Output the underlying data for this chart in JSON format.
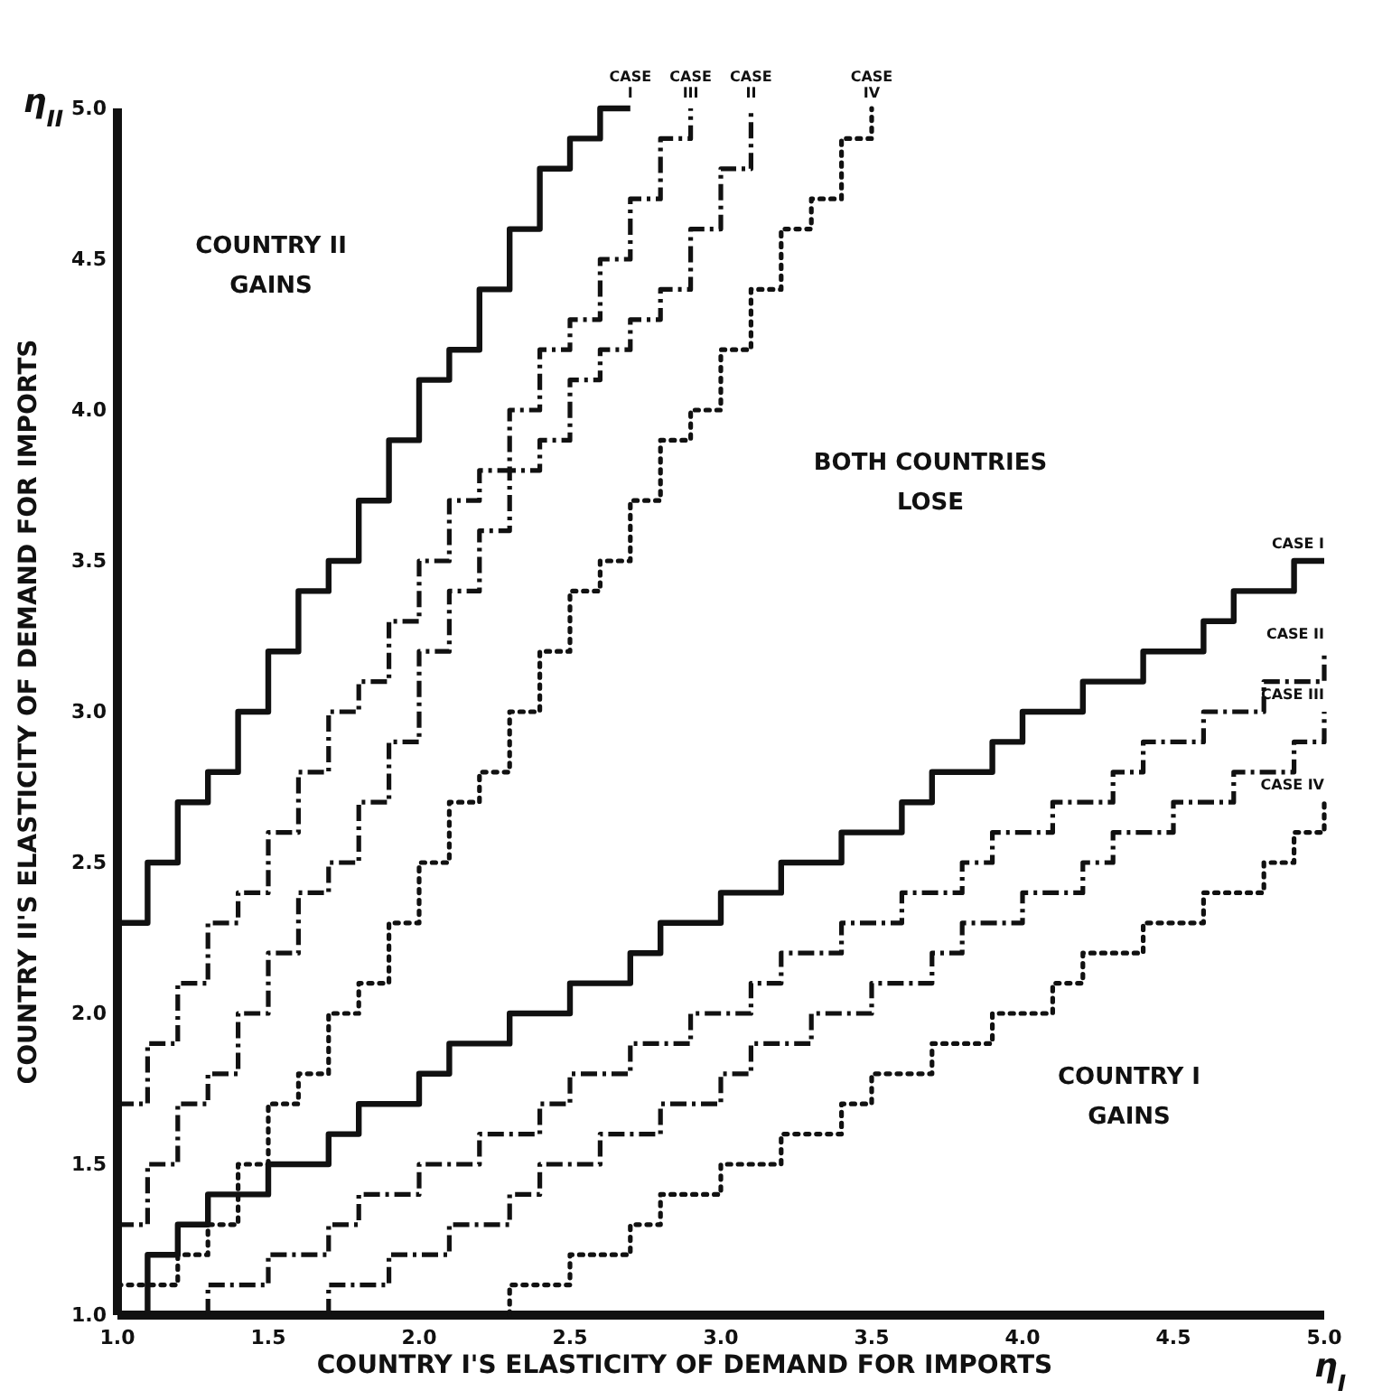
{
  "chart_data": {
    "type": "step",
    "xlabel": "COUNTRY I'S ELASTICITY OF DEMAND FOR IMPORTS",
    "ylabel": "COUNTRY II'S ELASTICITY OF DEMAND FOR IMPORTS",
    "xlim": [
      1.0,
      5.0
    ],
    "ylim": [
      1.0,
      5.0
    ],
    "xticks": [
      {
        "value": 1.0,
        "label": "1.0"
      },
      {
        "value": 1.5,
        "label": "1.5"
      },
      {
        "value": 2.0,
        "label": "2.0"
      },
      {
        "value": 2.5,
        "label": "2.5"
      },
      {
        "value": 3.0,
        "label": "3.0"
      },
      {
        "value": 3.5,
        "label": "3.5"
      },
      {
        "value": 4.0,
        "label": "4.0"
      },
      {
        "value": 4.5,
        "label": "4.5"
      },
      {
        "value": 5.0,
        "label": "5.0"
      }
    ],
    "yticks": [
      {
        "value": 1.0,
        "label": "1.0"
      },
      {
        "value": 1.5,
        "label": "1.5"
      },
      {
        "value": 2.0,
        "label": "2.0"
      },
      {
        "value": 2.5,
        "label": "2.5"
      },
      {
        "value": 3.0,
        "label": "3.0"
      },
      {
        "value": 3.5,
        "label": "3.5"
      },
      {
        "value": 4.0,
        "label": "4.0"
      },
      {
        "value": 4.5,
        "label": "4.5"
      },
      {
        "value": 5.0,
        "label": "5.0"
      }
    ],
    "grid": false,
    "marker": "none",
    "annotations": [
      "COUNTRY II GAINS",
      "BOTH COUNTRIES LOSE",
      "COUNTRY I GAINS",
      "η$_{I}$",
      "η$_{II}$"
    ],
    "series": [
      {
        "name": "CASE I",
        "color": "#111111",
        "line_style": "solid",
        "x": [
          1.0,
          1.1,
          1.2,
          1.3,
          1.4,
          1.5,
          1.6,
          1.7,
          1.8,
          1.9,
          2.0,
          2.1,
          2.2,
          2.3,
          2.4,
          2.5,
          2.6,
          2.7
        ],
        "values": [
          2.3,
          2.5,
          2.7,
          2.8,
          3.0,
          3.2,
          3.4,
          3.5,
          3.7,
          3.9,
          4.1,
          4.2,
          4.4,
          4.6,
          4.8,
          4.9,
          5.0,
          5.0
        ]
      },
      {
        "name": "CASE III",
        "color": "#111111",
        "line_style": "dashed",
        "x": [
          1.0,
          1.1,
          1.2,
          1.3,
          1.4,
          1.5,
          1.6,
          1.7,
          1.8,
          1.9,
          2.0,
          2.1,
          2.2,
          2.3,
          2.4,
          2.5,
          2.6,
          2.7,
          2.8,
          2.9
        ],
        "values": [
          1.7,
          1.9,
          2.1,
          2.3,
          2.4,
          2.6,
          2.8,
          3.0,
          3.1,
          3.3,
          3.5,
          3.7,
          3.8,
          4.0,
          4.2,
          4.3,
          4.5,
          4.7,
          4.9,
          5.0
        ]
      },
      {
        "name": "CASE II",
        "color": "#111111",
        "line_style": "dashed",
        "x": [
          1.0,
          1.1,
          1.2,
          1.3,
          1.4,
          1.5,
          1.6,
          1.7,
          1.8,
          1.9,
          2.0,
          2.1,
          2.2,
          2.3,
          2.4,
          2.5,
          2.6,
          2.7,
          2.8,
          2.9,
          3.0,
          3.1
        ],
        "values": [
          1.3,
          1.5,
          1.7,
          1.8,
          2.0,
          2.2,
          2.4,
          2.5,
          2.7,
          2.9,
          3.2,
          3.4,
          3.6,
          3.8,
          3.9,
          4.1,
          4.2,
          4.3,
          4.4,
          4.6,
          4.8,
          5.0
        ]
      },
      {
        "name": "CASE IV",
        "color": "#111111",
        "line_style": "dotted",
        "x": [
          1.0,
          1.1,
          1.2,
          1.3,
          1.4,
          1.5,
          1.6,
          1.7,
          1.8,
          1.9,
          2.0,
          2.1,
          2.2,
          2.3,
          2.4,
          2.5,
          2.6,
          2.7,
          2.8,
          2.9,
          3.0,
          3.1,
          3.2,
          3.3,
          3.4,
          3.5
        ],
        "values": [
          1.1,
          1.1,
          1.2,
          1.3,
          1.5,
          1.7,
          1.8,
          2.0,
          2.1,
          2.3,
          2.5,
          2.7,
          2.8,
          3.0,
          3.2,
          3.4,
          3.5,
          3.7,
          3.9,
          4.0,
          4.2,
          4.4,
          4.6,
          4.7,
          4.9,
          5.0
        ]
      },
      {
        "name": "CASE I",
        "color": "#111111",
        "line_style": "solid",
        "x": [
          1.1,
          1.1,
          1.2,
          1.3,
          1.5,
          1.7,
          1.8,
          2.0,
          2.1,
          2.3,
          2.5,
          2.7,
          2.8,
          3.0,
          3.2,
          3.4,
          3.6,
          3.7,
          3.9,
          4.0,
          4.2,
          4.4,
          4.6,
          4.7,
          4.9,
          5.0
        ],
        "values": [
          1.0,
          1.2,
          1.3,
          1.4,
          1.5,
          1.6,
          1.7,
          1.8,
          1.9,
          2.0,
          2.1,
          2.2,
          2.3,
          2.4,
          2.5,
          2.6,
          2.7,
          2.8,
          2.9,
          3.0,
          3.1,
          3.2,
          3.3,
          3.4,
          3.5,
          3.5
        ]
      },
      {
        "name": "CASE II",
        "color": "#111111",
        "line_style": "dashed",
        "x": [
          1.3,
          1.3,
          1.5,
          1.7,
          1.8,
          2.0,
          2.2,
          2.4,
          2.5,
          2.7,
          2.9,
          3.1,
          3.2,
          3.4,
          3.6,
          3.8,
          3.9,
          4.1,
          4.3,
          4.4,
          4.6,
          4.8,
          5.0
        ],
        "values": [
          1.0,
          1.1,
          1.2,
          1.3,
          1.4,
          1.5,
          1.6,
          1.7,
          1.8,
          1.9,
          2.0,
          2.1,
          2.2,
          2.3,
          2.4,
          2.5,
          2.6,
          2.7,
          2.8,
          2.9,
          3.0,
          3.1,
          3.2
        ]
      },
      {
        "name": "CASE III",
        "color": "#111111",
        "line_style": "dashed",
        "x": [
          1.7,
          1.7,
          1.9,
          2.1,
          2.3,
          2.4,
          2.6,
          2.8,
          3.0,
          3.1,
          3.3,
          3.5,
          3.7,
          3.8,
          4.0,
          4.2,
          4.3,
          4.5,
          4.7,
          4.9,
          5.0
        ],
        "values": [
          1.0,
          1.1,
          1.2,
          1.3,
          1.4,
          1.5,
          1.6,
          1.7,
          1.8,
          1.9,
          2.0,
          2.1,
          2.2,
          2.3,
          2.4,
          2.5,
          2.6,
          2.7,
          2.8,
          2.9,
          3.0
        ]
      },
      {
        "name": "CASE IV",
        "color": "#111111",
        "line_style": "dotted",
        "x": [
          2.3,
          2.3,
          2.5,
          2.7,
          2.8,
          3.0,
          3.2,
          3.4,
          3.5,
          3.7,
          3.9,
          4.1,
          4.2,
          4.4,
          4.6,
          4.8,
          4.9,
          5.0
        ],
        "values": [
          1.0,
          1.1,
          1.2,
          1.3,
          1.4,
          1.5,
          1.6,
          1.7,
          1.8,
          1.9,
          2.0,
          2.1,
          2.2,
          2.3,
          2.4,
          2.5,
          2.6,
          2.7
        ]
      }
    ]
  }
}
